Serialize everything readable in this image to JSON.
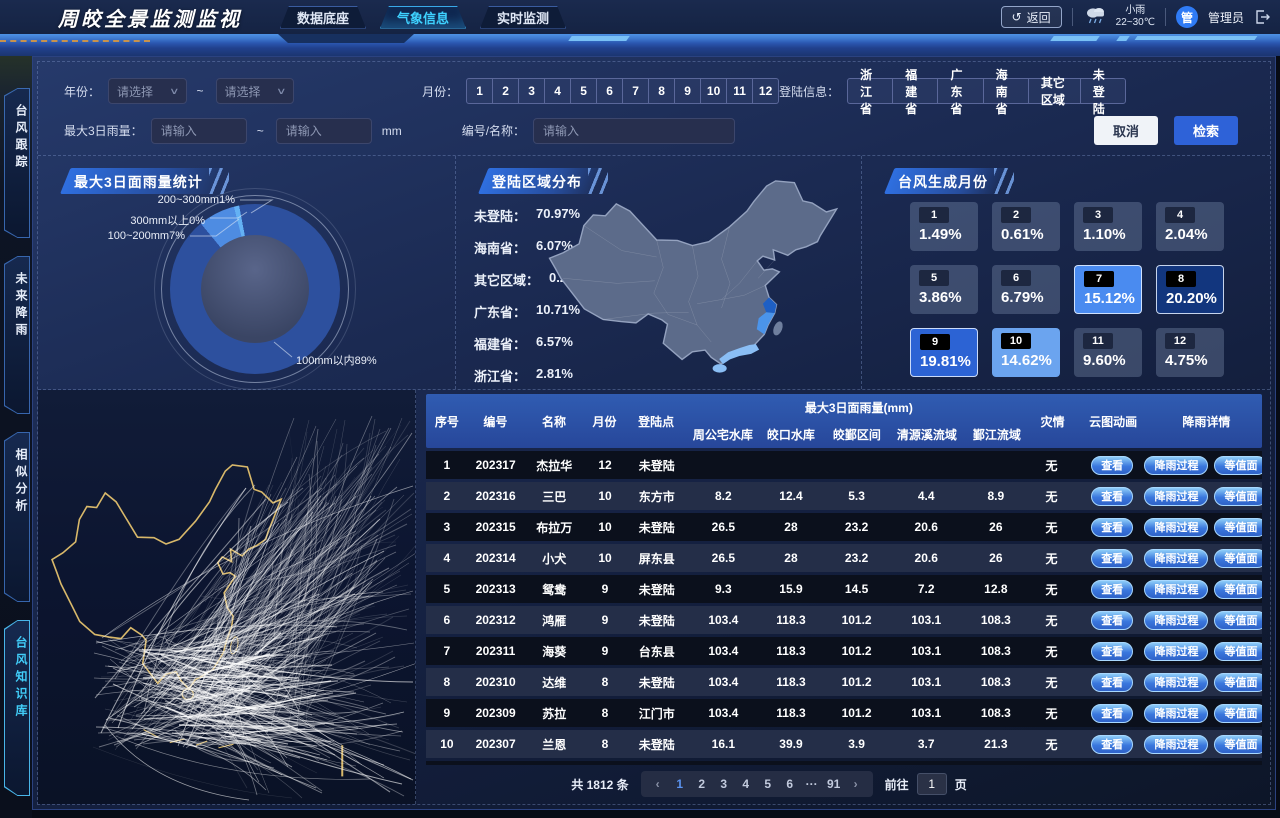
{
  "header": {
    "title": "周皎全景监测监视",
    "nav": [
      {
        "label": "数据底座",
        "active": false
      },
      {
        "label": "气象信息",
        "active": true
      },
      {
        "label": "实时监测",
        "active": false
      }
    ],
    "back_label": "返回",
    "weather": {
      "condition": "小雨",
      "temp_range": "22~30℃"
    },
    "user": {
      "avatar_text": "管",
      "name": "管理员"
    }
  },
  "sidebar": [
    {
      "label": "台风跟踪",
      "active": false
    },
    {
      "label": "未来降雨",
      "active": false
    },
    {
      "label": "相似分析",
      "active": false
    },
    {
      "label": "台风知识库",
      "active": true
    }
  ],
  "filters": {
    "year_label": "年份：",
    "year_placeholder": "请选择",
    "range_sep": "~",
    "month_label": "月份：",
    "months": [
      "1",
      "2",
      "3",
      "4",
      "5",
      "6",
      "7",
      "8",
      "9",
      "10",
      "11",
      "12"
    ],
    "landing_label": "登陆信息：",
    "landing_options": [
      "浙江省",
      "福建省",
      "广东省",
      "海南省",
      "其它区域",
      "未登陆"
    ],
    "rain_label": "最大3日雨量：",
    "rain_placeholder": "请输入",
    "rain_unit": "mm",
    "name_label": "编号/名称：",
    "name_placeholder": "请输入",
    "cancel_label": "取消",
    "search_label": "检索"
  },
  "panels": {
    "rain_title": "最大3日面雨量统计",
    "landing_title": "登陆区域分布",
    "months_title": "台风生成月份"
  },
  "chart_data": [
    {
      "type": "pie",
      "title": "最大3日面雨量统计",
      "unit": "%",
      "series": [
        {
          "label": "100mm以内",
          "value": 89,
          "color": "#2d509e"
        },
        {
          "label": "100~200mm",
          "value": 7,
          "color": "#4e8ce2"
        },
        {
          "label": "200~300mm",
          "value": 1,
          "color": "#64b1f4"
        },
        {
          "label": "300mm以上",
          "value": 0,
          "color": "#8fd0ff"
        }
      ]
    },
    {
      "type": "pie",
      "title": "登陆区域分布",
      "unit": "%",
      "series": [
        {
          "label": "未登陆",
          "value": 70.97
        },
        {
          "label": "海南省",
          "value": 6.07
        },
        {
          "label": "其它区域",
          "value": 0.22
        },
        {
          "label": "广东省",
          "value": 10.71
        },
        {
          "label": "福建省",
          "value": 6.57
        },
        {
          "label": "浙江省",
          "value": 2.81
        }
      ]
    },
    {
      "type": "bar",
      "title": "台风生成月份",
      "categories": [
        "1",
        "2",
        "3",
        "4",
        "5",
        "6",
        "7",
        "8",
        "9",
        "10",
        "11",
        "12"
      ],
      "values": [
        1.49,
        0.61,
        1.1,
        2.04,
        3.86,
        6.79,
        15.12,
        20.2,
        19.81,
        14.62,
        9.6,
        4.75
      ],
      "unit": "%"
    }
  ],
  "table": {
    "col_headers": [
      "序号",
      "编号",
      "名称",
      "月份",
      "登陆点",
      "灾情",
      "云图动画",
      "降雨详情"
    ],
    "group_header": "最大3日面雨量(mm)",
    "sub_headers": [
      "周公宅水库",
      "皎口水库",
      "皎鄞区间",
      "清源溪流域",
      "鄞江流域"
    ],
    "actions": {
      "view": "查看",
      "process": "降雨过程",
      "surface": "等值面"
    },
    "rows": [
      {
        "seq": "1",
        "code": "202317",
        "name": "杰拉华",
        "month": "12",
        "landing": "未登陆",
        "rain": [
          "",
          "",
          "",
          "",
          ""
        ],
        "disaster": "无"
      },
      {
        "seq": "2",
        "code": "202316",
        "name": "三巴",
        "month": "10",
        "landing": "东方市",
        "rain": [
          "8.2",
          "12.4",
          "5.3",
          "4.4",
          "8.9"
        ],
        "disaster": "无"
      },
      {
        "seq": "3",
        "code": "202315",
        "name": "布拉万",
        "month": "10",
        "landing": "未登陆",
        "rain": [
          "26.5",
          "28",
          "23.2",
          "20.6",
          "26"
        ],
        "disaster": "无"
      },
      {
        "seq": "4",
        "code": "202314",
        "name": "小犬",
        "month": "10",
        "landing": "屏东县",
        "rain": [
          "26.5",
          "28",
          "23.2",
          "20.6",
          "26"
        ],
        "disaster": "无"
      },
      {
        "seq": "5",
        "code": "202313",
        "name": "鸳鸯",
        "month": "9",
        "landing": "未登陆",
        "rain": [
          "9.3",
          "15.9",
          "14.5",
          "7.2",
          "12.8"
        ],
        "disaster": "无"
      },
      {
        "seq": "6",
        "code": "202312",
        "name": "鸿雁",
        "month": "9",
        "landing": "未登陆",
        "rain": [
          "103.4",
          "118.3",
          "101.2",
          "103.1",
          "108.3"
        ],
        "disaster": "无"
      },
      {
        "seq": "7",
        "code": "202311",
        "name": "海葵",
        "month": "9",
        "landing": "台东县",
        "rain": [
          "103.4",
          "118.3",
          "101.2",
          "103.1",
          "108.3"
        ],
        "disaster": "无"
      },
      {
        "seq": "8",
        "code": "202310",
        "name": "达维",
        "month": "8",
        "landing": "未登陆",
        "rain": [
          "103.4",
          "118.3",
          "101.2",
          "103.1",
          "108.3"
        ],
        "disaster": "无"
      },
      {
        "seq": "9",
        "code": "202309",
        "name": "苏拉",
        "month": "8",
        "landing": "江门市",
        "rain": [
          "103.4",
          "118.3",
          "101.2",
          "103.1",
          "108.3"
        ],
        "disaster": "无"
      },
      {
        "seq": "10",
        "code": "202307",
        "name": "兰恩",
        "month": "8",
        "landing": "未登陆",
        "rain": [
          "16.1",
          "39.9",
          "3.9",
          "3.7",
          "21.3"
        ],
        "disaster": "无"
      },
      {
        "seq": "",
        "code": "",
        "name": "",
        "month": "",
        "landing": "",
        "rain": [
          "",
          "",
          "",
          "",
          ""
        ],
        "disaster": ""
      }
    ]
  },
  "pagination": {
    "total": "共 1812 条",
    "prev": "‹",
    "next": "›",
    "pages": [
      "1",
      "2",
      "3",
      "4",
      "5",
      "6",
      "···",
      "91"
    ],
    "active_page": "1",
    "goto_label": "前往",
    "goto_value": "1",
    "page_suffix": "页"
  }
}
